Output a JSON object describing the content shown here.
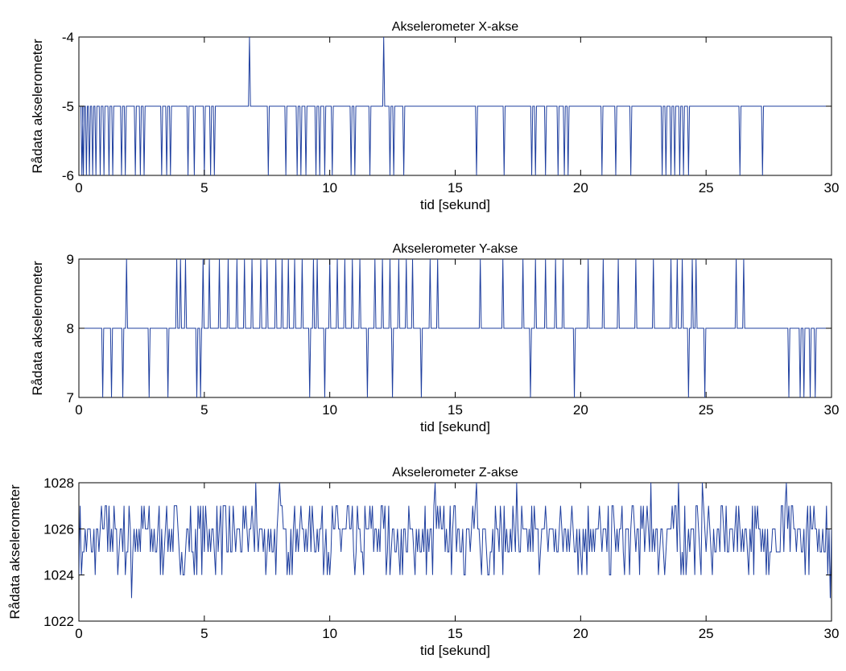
{
  "chart_data": [
    {
      "type": "line",
      "title": "Akselerometer X-akse",
      "xlabel": "tid [sekund]",
      "ylabel": "Rådata akselerometer",
      "xlim": [
        0,
        30
      ],
      "ylim": [
        -6,
        -4
      ],
      "xticks": [
        "0",
        "5",
        "10",
        "15",
        "20",
        "25",
        "30"
      ],
      "yticks": [
        "-6",
        "-5",
        "-4"
      ],
      "color": "#1f3f9f",
      "baseline": -5,
      "spikes": [
        [
          0.12,
          -6
        ],
        [
          0.18,
          -6
        ],
        [
          0.3,
          -6
        ],
        [
          0.42,
          -6
        ],
        [
          0.55,
          -6
        ],
        [
          0.68,
          -6
        ],
        [
          0.85,
          -6
        ],
        [
          1.0,
          -6
        ],
        [
          1.2,
          -6
        ],
        [
          1.35,
          -6
        ],
        [
          1.7,
          -6
        ],
        [
          1.85,
          -6
        ],
        [
          2.25,
          -6
        ],
        [
          2.45,
          -6
        ],
        [
          2.6,
          -6
        ],
        [
          3.3,
          -6
        ],
        [
          3.5,
          -6
        ],
        [
          3.65,
          -6
        ],
        [
          4.35,
          -6
        ],
        [
          4.6,
          -6
        ],
        [
          5.0,
          -6
        ],
        [
          5.25,
          -6
        ],
        [
          5.4,
          -6
        ],
        [
          6.8,
          -4
        ],
        [
          7.55,
          -6
        ],
        [
          8.25,
          -6
        ],
        [
          8.7,
          -6
        ],
        [
          8.85,
          -6
        ],
        [
          9.05,
          -6
        ],
        [
          9.45,
          -6
        ],
        [
          9.6,
          -6
        ],
        [
          9.8,
          -6
        ],
        [
          10.1,
          -6
        ],
        [
          10.85,
          -6
        ],
        [
          11.0,
          -6
        ],
        [
          11.6,
          -6
        ],
        [
          12.15,
          -4
        ],
        [
          12.4,
          -6
        ],
        [
          12.55,
          -6
        ],
        [
          12.95,
          -6
        ],
        [
          15.85,
          -6
        ],
        [
          16.95,
          -6
        ],
        [
          18.05,
          -6
        ],
        [
          18.2,
          -6
        ],
        [
          18.6,
          -6
        ],
        [
          19.1,
          -6
        ],
        [
          19.35,
          -6
        ],
        [
          19.5,
          -6
        ],
        [
          20.85,
          -6
        ],
        [
          21.4,
          -6
        ],
        [
          22.0,
          -6
        ],
        [
          23.25,
          -6
        ],
        [
          23.4,
          -6
        ],
        [
          23.6,
          -6
        ],
        [
          23.75,
          -6
        ],
        [
          23.95,
          -6
        ],
        [
          24.1,
          -6
        ],
        [
          24.3,
          -6
        ],
        [
          26.35,
          -6
        ],
        [
          27.25,
          -6
        ]
      ]
    },
    {
      "type": "line",
      "title": "Akselerometer Y-akse",
      "xlabel": "tid [sekund]",
      "ylabel": "Rådata akselerometer",
      "xlim": [
        0,
        30
      ],
      "ylim": [
        7,
        9
      ],
      "xticks": [
        "0",
        "5",
        "10",
        "15",
        "20",
        "25",
        "30"
      ],
      "yticks": [
        "7",
        "8",
        "9"
      ],
      "color": "#1f3f9f",
      "baseline": 8,
      "spikes": [
        [
          0.95,
          7
        ],
        [
          1.3,
          7
        ],
        [
          1.75,
          7
        ],
        [
          1.9,
          9
        ],
        [
          2.8,
          7
        ],
        [
          3.55,
          7
        ],
        [
          3.9,
          9
        ],
        [
          4.05,
          9
        ],
        [
          4.25,
          9
        ],
        [
          4.7,
          7
        ],
        [
          4.85,
          7
        ],
        [
          4.95,
          9
        ],
        [
          5.2,
          9
        ],
        [
          5.6,
          9
        ],
        [
          5.95,
          9
        ],
        [
          6.3,
          9
        ],
        [
          6.6,
          9
        ],
        [
          6.9,
          9
        ],
        [
          7.25,
          9
        ],
        [
          7.5,
          9
        ],
        [
          7.85,
          9
        ],
        [
          8.1,
          9
        ],
        [
          8.35,
          9
        ],
        [
          8.6,
          9
        ],
        [
          8.9,
          9
        ],
        [
          9.2,
          7
        ],
        [
          9.35,
          9
        ],
        [
          9.5,
          9
        ],
        [
          9.8,
          7
        ],
        [
          10.0,
          9
        ],
        [
          10.3,
          9
        ],
        [
          10.6,
          9
        ],
        [
          10.9,
          9
        ],
        [
          11.2,
          9
        ],
        [
          11.5,
          7
        ],
        [
          11.8,
          9
        ],
        [
          12.1,
          9
        ],
        [
          12.4,
          9
        ],
        [
          12.5,
          7
        ],
        [
          12.75,
          9
        ],
        [
          13.05,
          9
        ],
        [
          13.3,
          9
        ],
        [
          13.65,
          7
        ],
        [
          14.0,
          9
        ],
        [
          14.3,
          9
        ],
        [
          16.0,
          9
        ],
        [
          16.9,
          9
        ],
        [
          17.7,
          9
        ],
        [
          18.0,
          7
        ],
        [
          18.2,
          9
        ],
        [
          18.6,
          9
        ],
        [
          19.0,
          9
        ],
        [
          19.3,
          9
        ],
        [
          19.75,
          7
        ],
        [
          20.3,
          9
        ],
        [
          20.9,
          9
        ],
        [
          21.5,
          9
        ],
        [
          22.2,
          9
        ],
        [
          22.9,
          9
        ],
        [
          23.6,
          9
        ],
        [
          23.85,
          9
        ],
        [
          24.05,
          9
        ],
        [
          24.3,
          7
        ],
        [
          24.45,
          9
        ],
        [
          24.6,
          9
        ],
        [
          24.95,
          7
        ],
        [
          26.2,
          9
        ],
        [
          26.5,
          9
        ],
        [
          28.3,
          7
        ],
        [
          28.75,
          7
        ],
        [
          28.9,
          7
        ],
        [
          29.15,
          7
        ],
        [
          29.35,
          7
        ]
      ]
    },
    {
      "type": "line",
      "title": "Akselerometer Z-akse",
      "xlabel": "tid [sekund]",
      "ylabel": "Rådata akselerometer",
      "xlim": [
        0,
        30
      ],
      "ylim": [
        1022,
        1028
      ],
      "xticks": [
        "0",
        "5",
        "10",
        "15",
        "20",
        "25",
        "30"
      ],
      "yticks": [
        "1022",
        "1024",
        "1026",
        "1028"
      ],
      "color": "#1f3f9f",
      "baseline": 1025.5,
      "noise": {
        "min": 1024,
        "max": 1027,
        "step_seconds": 0.05
      },
      "spikes": [
        [
          0.1,
          1024
        ],
        [
          2.1,
          1023
        ],
        [
          7.05,
          1028
        ],
        [
          8.0,
          1028
        ],
        [
          14.2,
          1028
        ],
        [
          15.85,
          1028
        ],
        [
          17.45,
          1028
        ],
        [
          22.8,
          1028
        ],
        [
          23.9,
          1028
        ],
        [
          24.85,
          1028
        ],
        [
          28.2,
          1028
        ],
        [
          29.95,
          1023
        ]
      ]
    }
  ]
}
